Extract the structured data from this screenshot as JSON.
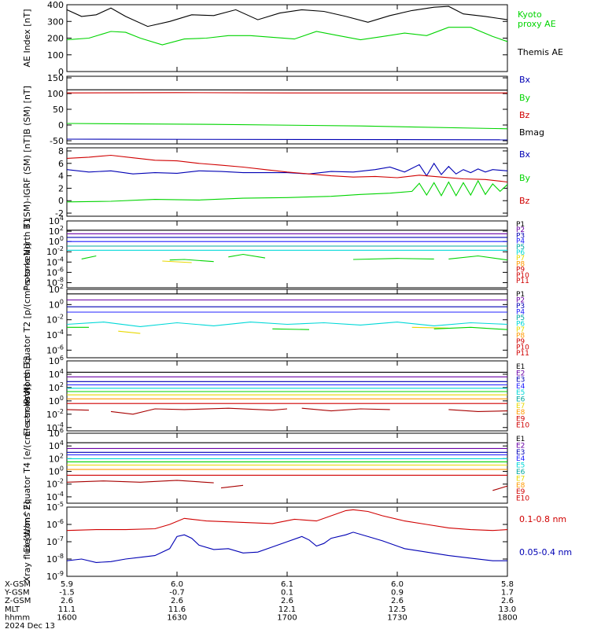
{
  "colors": {
    "black": "#000000",
    "blue": "#0000b4",
    "green": "#00d400",
    "red": "#d00000",
    "purple": "#6a00a6",
    "navy": "#2020ff",
    "cyan": "#00d8d8",
    "teal": "#00a8a0",
    "yellow": "#e8d800",
    "orange": "#ff9a00",
    "darkred": "#a80000"
  },
  "chart_data": [
    {
      "id": "ae",
      "type": "line",
      "ylabel": "AE Index [nT]",
      "ylim": [
        0,
        400
      ],
      "yticks": [
        "400",
        "300",
        "200",
        "100",
        "0"
      ],
      "series": [
        {
          "name": "Kyoto proxy AE",
          "color": "green",
          "x": [
            0,
            3,
            6,
            8,
            10,
            13,
            16,
            19,
            22,
            25,
            28,
            31,
            34,
            37,
            40,
            43,
            46,
            49,
            52,
            55,
            58,
            60
          ],
          "y": [
            190,
            200,
            240,
            235,
            200,
            160,
            195,
            200,
            215,
            215,
            205,
            195,
            240,
            215,
            190,
            210,
            230,
            215,
            265,
            265,
            210,
            180
          ]
        },
        {
          "name": "Themis AE",
          "color": "black",
          "x": [
            0,
            2,
            4,
            6,
            8,
            11,
            14,
            17,
            20,
            23,
            26,
            29,
            32,
            35,
            38,
            41,
            44,
            47,
            50,
            52,
            54,
            57,
            60
          ],
          "y": [
            370,
            330,
            340,
            380,
            330,
            270,
            300,
            340,
            335,
            370,
            310,
            350,
            370,
            360,
            330,
            295,
            335,
            365,
            385,
            390,
            345,
            330,
            310
          ]
        }
      ],
      "legend": [
        "Kyoto proxy AE",
        "Themis AE"
      ]
    },
    {
      "id": "bsm",
      "type": "line",
      "ylabel": "B (SM) [nT]",
      "ylim": [
        -60,
        155
      ],
      "yticks": [
        "150",
        "100",
        "50",
        "0",
        "-50"
      ],
      "series": [
        {
          "name": "Bx",
          "color": "blue",
          "x": [
            0,
            60
          ],
          "y": [
            -45,
            -47
          ]
        },
        {
          "name": "By",
          "color": "green",
          "x": [
            0,
            20,
            40,
            60
          ],
          "y": [
            5,
            2,
            -3,
            -12
          ]
        },
        {
          "name": "Bz",
          "color": "red",
          "x": [
            0,
            15,
            30,
            60
          ],
          "y": [
            102,
            103,
            102,
            102
          ]
        },
        {
          "name": "Bmag",
          "color": "black",
          "x": [
            0,
            60
          ],
          "y": [
            112,
            111
          ]
        }
      ],
      "legend": [
        "Bx",
        "By",
        "Bz",
        "Bmag"
      ]
    },
    {
      "id": "bdiff",
      "type": "line",
      "ylabel": "B (SM)-IGRF (SM) [nT]",
      "ylim": [
        -2.5,
        8.5
      ],
      "yticks": [
        "8",
        "6",
        "4",
        "2",
        "0",
        "-2"
      ],
      "series": [
        {
          "name": "Bx",
          "color": "blue",
          "x": [
            0,
            3,
            6,
            9,
            12,
            15,
            18,
            21,
            24,
            27,
            30,
            33,
            36,
            39,
            42,
            44,
            46,
            48,
            49,
            50,
            51,
            52,
            53,
            54,
            55,
            56,
            57,
            58,
            60
          ],
          "y": [
            5.0,
            4.6,
            4.8,
            4.3,
            4.5,
            4.4,
            4.8,
            4.7,
            4.5,
            4.5,
            4.5,
            4.3,
            4.7,
            4.6,
            5.0,
            5.4,
            4.6,
            5.8,
            4.0,
            6.0,
            4.2,
            5.5,
            4.3,
            5.0,
            4.5,
            5.1,
            4.6,
            5.0,
            4.8
          ]
        },
        {
          "name": "By",
          "color": "green",
          "x": [
            0,
            6,
            12,
            18,
            24,
            30,
            36,
            40,
            44,
            47,
            48,
            49,
            50,
            51,
            52,
            53,
            54,
            55,
            56,
            57,
            58,
            59,
            60
          ],
          "y": [
            -0.2,
            -0.1,
            0.2,
            0.1,
            0.4,
            0.5,
            0.7,
            1.0,
            1.2,
            1.5,
            2.8,
            0.9,
            2.9,
            0.8,
            3.0,
            0.8,
            2.9,
            0.9,
            3.2,
            1.0,
            2.7,
            1.5,
            2.6
          ]
        },
        {
          "name": "Bz",
          "color": "red",
          "x": [
            0,
            3,
            6,
            9,
            12,
            15,
            18,
            21,
            24,
            27,
            30,
            33,
            36,
            39,
            42,
            45,
            48,
            51,
            54,
            57,
            60
          ],
          "y": [
            6.8,
            7.0,
            7.3,
            6.9,
            6.5,
            6.4,
            6.0,
            5.7,
            5.4,
            5.0,
            4.6,
            4.3,
            4.0,
            3.8,
            3.9,
            3.7,
            4.1,
            3.8,
            3.5,
            3.4,
            3.0
          ]
        }
      ],
      "legend": [
        "Bx",
        "By",
        "Bz"
      ]
    },
    {
      "id": "pn",
      "type": "line",
      "log": true,
      "ylabel": "Protons North T1",
      "ylim": [
        -9,
        4
      ],
      "yticks": [
        "10^4",
        "10^2",
        "10^0",
        "10^-2",
        "10^-4",
        "10^-6",
        "10^-8"
      ],
      "levels": [
        {
          "name": "P1",
          "color": "black",
          "y": 2.2
        },
        {
          "name": "P2",
          "color": "purple",
          "y": 1.5
        },
        {
          "name": "P3",
          "color": "blue",
          "y": 0.8
        },
        {
          "name": "P4",
          "color": "navy",
          "y": 0.0
        },
        {
          "name": "P5",
          "color": "teal",
          "y": -0.9
        },
        {
          "name": "P6",
          "color": "cyan",
          "y": -1.7
        }
      ],
      "segments": [
        {
          "color": "green",
          "x": [
            2,
            4
          ],
          "y": [
            -3.4,
            -2.8
          ]
        },
        {
          "color": "green",
          "x": [
            14,
            16,
            20
          ],
          "y": [
            -3.6,
            -3.5,
            -3.9
          ]
        },
        {
          "color": "yellow",
          "x": [
            13,
            17
          ],
          "y": [
            -3.8,
            -4.1
          ]
        },
        {
          "color": "green",
          "x": [
            22,
            24,
            27
          ],
          "y": [
            -3.0,
            -2.5,
            -3.2
          ]
        },
        {
          "color": "green",
          "x": [
            39,
            45,
            50
          ],
          "y": [
            -3.5,
            -3.3,
            -3.4
          ]
        },
        {
          "color": "green",
          "x": [
            52,
            56,
            60
          ],
          "y": [
            -3.4,
            -2.8,
            -3.6
          ]
        }
      ],
      "legend": [
        "P1",
        "P2",
        "P3",
        "P4",
        "P5",
        "P6",
        "P7",
        "P8",
        "P9",
        "P10",
        "P11"
      ]
    },
    {
      "id": "pe",
      "type": "line",
      "log": true,
      "ylabel": "Protons Equator T2 [p/(cm²-s-sr-keV)]",
      "ylim": [
        -7,
        2
      ],
      "yticks": [
        "10^2",
        "10^0",
        "10^-2",
        "10^-4",
        "10^-6"
      ],
      "levels": [
        {
          "name": "P1",
          "color": "black",
          "y": 1.4
        },
        {
          "name": "P2",
          "color": "purple",
          "y": 0.6
        },
        {
          "name": "P3",
          "color": "blue",
          "y": -0.3
        },
        {
          "name": "P4",
          "color": "navy",
          "y": -1.0
        }
      ],
      "segments": [
        {
          "color": "cyan",
          "x": [
            0,
            5,
            10,
            15,
            20,
            25,
            30,
            35,
            40,
            45,
            50,
            55,
            60
          ],
          "y": [
            -2.6,
            -2.3,
            -2.9,
            -2.4,
            -2.8,
            -2.3,
            -2.6,
            -2.4,
            -2.7,
            -2.3,
            -2.8,
            -2.4,
            -2.6
          ]
        },
        {
          "color": "green",
          "x": [
            0,
            3
          ],
          "y": [
            -3.0,
            -3.0
          ]
        },
        {
          "color": "yellow",
          "x": [
            7,
            10
          ],
          "y": [
            -3.5,
            -3.8
          ]
        },
        {
          "color": "green",
          "x": [
            28,
            33
          ],
          "y": [
            -3.2,
            -3.3
          ]
        },
        {
          "color": "yellow",
          "x": [
            47,
            52
          ],
          "y": [
            -3.0,
            -3.1
          ]
        },
        {
          "color": "green",
          "x": [
            50,
            55,
            60
          ],
          "y": [
            -3.2,
            -3.0,
            -3.3
          ]
        }
      ],
      "legend": [
        "P1",
        "P2",
        "P3",
        "P4",
        "P5",
        "P6",
        "P7",
        "P8",
        "P9",
        "P10",
        "P11"
      ]
    },
    {
      "id": "en",
      "type": "line",
      "log": true,
      "ylabel": "Electrons North T3",
      "ylim": [
        -4.5,
        6
      ],
      "yticks": [
        "10^6",
        "10^4",
        "10^2",
        "10^0",
        "10^-2",
        "10^-4"
      ],
      "levels": [
        {
          "name": "E1",
          "color": "black",
          "y": 4.3
        },
        {
          "name": "E2",
          "color": "purple",
          "y": 3.6
        },
        {
          "name": "E3",
          "color": "blue",
          "y": 2.9
        },
        {
          "name": "E4",
          "color": "navy",
          "y": 2.4
        },
        {
          "name": "E5",
          "color": "cyan",
          "y": 1.9
        },
        {
          "name": "E6",
          "color": "green",
          "y": 1.4
        },
        {
          "name": "E7",
          "color": "yellow",
          "y": 0.9
        },
        {
          "name": "E8",
          "color": "orange",
          "y": 0.3
        },
        {
          "name": "E9",
          "color": "red",
          "y": -0.4
        }
      ],
      "segments": [
        {
          "color": "darkred",
          "x": [
            0,
            3
          ],
          "y": [
            -1.3,
            -1.4
          ]
        },
        {
          "color": "darkred",
          "x": [
            6,
            9,
            12,
            16,
            22,
            28,
            30
          ],
          "y": [
            -1.6,
            -2.0,
            -1.2,
            -1.3,
            -1.1,
            -1.4,
            -1.2
          ]
        },
        {
          "color": "darkred",
          "x": [
            32,
            36,
            40,
            44
          ],
          "y": [
            -1.1,
            -1.5,
            -1.2,
            -1.3
          ]
        },
        {
          "color": "darkred",
          "x": [
            52,
            56,
            60
          ],
          "y": [
            -1.3,
            -1.6,
            -1.5
          ]
        }
      ],
      "legend": [
        "E1",
        "E2",
        "E3",
        "E4",
        "E5",
        "E6",
        "E7",
        "E8",
        "E9",
        "E10"
      ]
    },
    {
      "id": "ee",
      "type": "line",
      "log": true,
      "ylabel": "Electrons Equator T4 [e/(cm²-s-sr-keV)]",
      "ylim": [
        -5,
        6
      ],
      "yticks": [
        "10^6",
        "10^4",
        "10^2",
        "10^0",
        "10^-2",
        "10^-4"
      ],
      "levels": [
        {
          "name": "E1",
          "color": "black",
          "y": 4.5
        },
        {
          "name": "E2",
          "color": "purple",
          "y": 3.6
        },
        {
          "name": "E3",
          "color": "blue",
          "y": 3.0
        },
        {
          "name": "E4",
          "color": "navy",
          "y": 2.6
        },
        {
          "name": "E5",
          "color": "cyan",
          "y": 2.0
        },
        {
          "name": "E6",
          "color": "green",
          "y": 1.5
        },
        {
          "name": "E7",
          "color": "yellow",
          "y": 1.0
        },
        {
          "name": "E8",
          "color": "orange",
          "y": 0.3
        },
        {
          "name": "E9",
          "color": "red",
          "y": -0.6
        }
      ],
      "segments": [
        {
          "color": "darkred",
          "x": [
            0,
            5,
            10,
            15,
            20
          ],
          "y": [
            -1.7,
            -1.5,
            -1.7,
            -1.4,
            -1.8
          ]
        },
        {
          "color": "darkred",
          "x": [
            21,
            24
          ],
          "y": [
            -2.6,
            -2.2
          ]
        },
        {
          "color": "darkred",
          "x": [
            58,
            60
          ],
          "y": [
            -3.0,
            -2.3
          ]
        }
      ],
      "legend": [
        "E1",
        "E2",
        "E3",
        "E4",
        "E5",
        "E6",
        "E7",
        "E8",
        "E9",
        "E10"
      ]
    },
    {
      "id": "xray",
      "type": "line",
      "log": true,
      "ylabel": "Xray flux [W/m^2]",
      "ylim": [
        -9,
        -5
      ],
      "yticks": [
        "10^-5",
        "10^-6",
        "10^-7",
        "10^-8",
        "10^-9"
      ],
      "series": [
        {
          "name": "0.1-0.8 nm",
          "color": "red",
          "x": [
            0,
            4,
            8,
            12,
            14,
            16,
            17,
            19,
            22,
            25,
            28,
            31,
            34,
            38,
            39,
            41,
            43,
            46,
            49,
            52,
            55,
            58,
            60
          ],
          "y": [
            -6.35,
            -6.3,
            -6.3,
            -6.25,
            -6.0,
            -5.65,
            -5.7,
            -5.8,
            -5.85,
            -5.9,
            -5.95,
            -5.7,
            -5.8,
            -5.2,
            -5.15,
            -5.25,
            -5.5,
            -5.8,
            -6.0,
            -6.2,
            -6.3,
            -6.35,
            -6.3
          ]
        },
        {
          "name": "0.05-0.4 nm",
          "color": "blue",
          "x": [
            0,
            2,
            4,
            6,
            8,
            10,
            12,
            14,
            15,
            16,
            17,
            18,
            20,
            22,
            24,
            26,
            28,
            30,
            32,
            33,
            34,
            35,
            36,
            38,
            39,
            41,
            43,
            46,
            49,
            52,
            55,
            58,
            60
          ],
          "y": [
            -8.1,
            -8.0,
            -8.2,
            -8.15,
            -8.0,
            -7.9,
            -7.8,
            -7.4,
            -6.7,
            -6.6,
            -6.8,
            -7.2,
            -7.45,
            -7.4,
            -7.65,
            -7.6,
            -7.3,
            -7.0,
            -6.7,
            -6.9,
            -7.25,
            -7.1,
            -6.8,
            -6.6,
            -6.45,
            -6.7,
            -6.95,
            -7.4,
            -7.6,
            -7.8,
            -7.95,
            -8.1,
            -8.1
          ]
        }
      ],
      "legend": [
        "0.1-0.8 nm",
        "0.05-0.4 nm"
      ]
    }
  ],
  "footer": {
    "rows": [
      {
        "label": "X-GSM",
        "values": [
          "5.9",
          "6.0",
          "6.1",
          "6.0",
          "5.8"
        ]
      },
      {
        "label": "Y-GSM",
        "values": [
          "-1.5",
          "-0.7",
          "0.1",
          "0.9",
          "1.7"
        ]
      },
      {
        "label": "Z-GSM",
        "values": [
          "2.6",
          "2.6",
          "2.6",
          "2.6",
          "2.6"
        ]
      },
      {
        "label": "MLT",
        "values": [
          "11.1",
          "11.6",
          "12.1",
          "12.5",
          "13.0"
        ]
      },
      {
        "label": "hhmm",
        "values": [
          "1600",
          "1630",
          "1700",
          "1730",
          "1800"
        ]
      }
    ],
    "date": "2024 Dec 13"
  }
}
